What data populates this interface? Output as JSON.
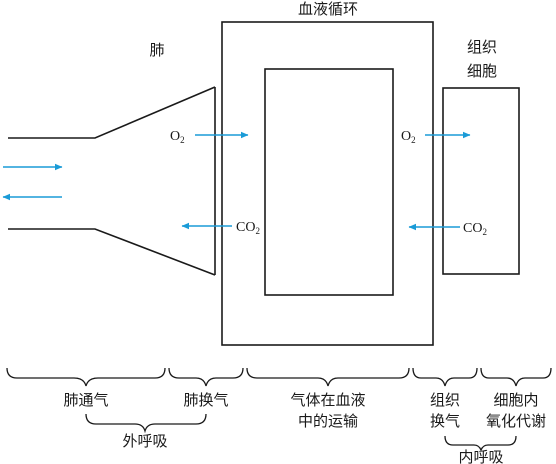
{
  "labels": {
    "lung": "肺",
    "blood_circulation": "血液循环",
    "tissue_cell_line1": "组织",
    "tissue_cell_line2": "细胞"
  },
  "gases": {
    "o2_left": {
      "main": "O",
      "sub": "2"
    },
    "co2_left": {
      "main": "CO",
      "sub": "2"
    },
    "o2_right": {
      "main": "O",
      "sub": "2"
    },
    "co2_right": {
      "main": "CO",
      "sub": "2"
    }
  },
  "stages": {
    "pulmonary_ventilation": "肺通气",
    "pulmonary_gas_exchange": "肺换气",
    "blood_transport_line1": "气体在血液",
    "blood_transport_line2": "中的运输",
    "tissue_exchange_line1": "组织",
    "tissue_exchange_line2": "换气",
    "cell_metabolism_line1": "细胞内",
    "cell_metabolism_line2": "氧化代谢"
  },
  "groups": {
    "external_respiration": "外呼吸",
    "internal_respiration": "内呼吸"
  },
  "colors": {
    "arrow": "#1a9bd7",
    "line": "#1a1a1a"
  }
}
